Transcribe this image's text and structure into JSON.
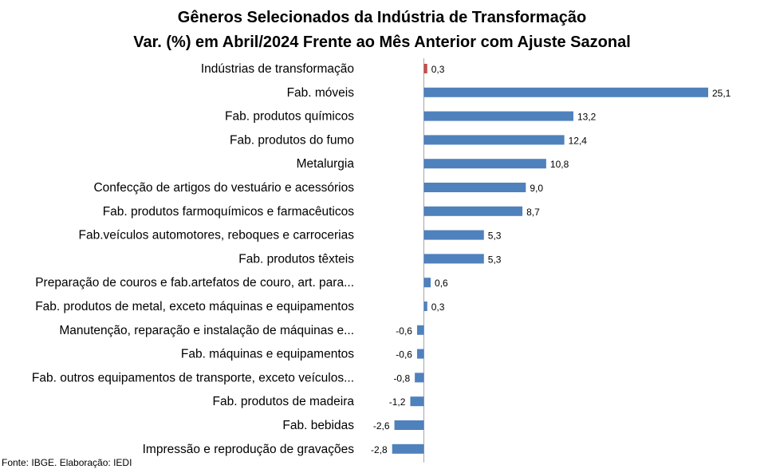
{
  "chart_data": {
    "type": "bar",
    "orientation": "horizontal",
    "title": "Gêneros Selecionados da Indústria de Transformação",
    "subtitle": "Var. (%) em Abril/2024 Frente ao Mês Anterior com Ajuste Sazonal",
    "xlim": [
      -3,
      26
    ],
    "grid": false,
    "categories": [
      "Indústrias de transformação",
      "Fab. móveis",
      "Fab. produtos químicos",
      "Fab. produtos do fumo",
      "Metalurgia",
      "Confecção de artigos do vestuário e acessórios",
      "Fab. produtos farmoquímicos e farmacêuticos",
      "Fab.veículos automotores, reboques e carrocerias",
      "Fab. produtos têxteis",
      "Preparação de couros e fab.artefatos de couro, art. para...",
      "Fab. produtos de metal, exceto máquinas e equipamentos",
      "Manutenção, reparação e instalação de máquinas e...",
      "Fab. máquinas e equipamentos",
      "Fab. outros equipamentos de transporte, exceto veículos...",
      "Fab. produtos de madeira",
      "Fab. bebidas",
      "Impressão e reprodução de gravações"
    ],
    "values": [
      0.3,
      25.1,
      13.2,
      12.4,
      10.8,
      9.0,
      8.7,
      5.3,
      5.3,
      0.6,
      0.3,
      -0.6,
      -0.6,
      -0.8,
      -1.2,
      -2.6,
      -2.8
    ],
    "value_labels": [
      "0,3",
      "25,1",
      "13,2",
      "12,4",
      "10,8",
      "9,0",
      "8,7",
      "5,3",
      "5,3",
      "0,6",
      "0,3",
      "-0,6",
      "-0,6",
      "-0,8",
      "-1,2",
      "-2,6",
      "-2,8"
    ],
    "colors": {
      "highlight": "#C0504D",
      "default": "#4F81BD",
      "axis": "#A6A6A6"
    },
    "highlight_index": 0
  },
  "source": "Fonte: IBGE. Elaboração: IEDI"
}
